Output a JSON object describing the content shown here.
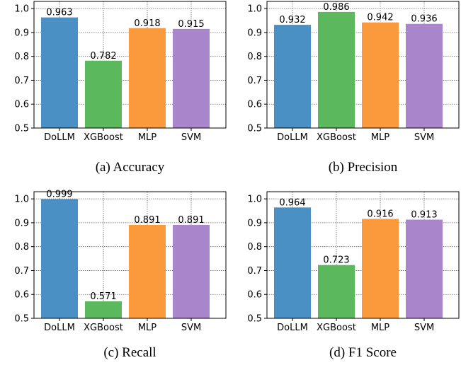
{
  "chart_data": [
    {
      "type": "bar",
      "caption": "(a) Accuracy",
      "categories": [
        "DoLLM",
        "XGBoost",
        "MLP",
        "SVM"
      ],
      "values": [
        0.963,
        0.782,
        0.918,
        0.915
      ],
      "value_labels": [
        "0.963",
        "0.782",
        "0.918",
        "0.915"
      ],
      "ylim": [
        0.5,
        1.03
      ],
      "yticks": [
        "0.5",
        "0.6",
        "0.7",
        "0.8",
        "0.9",
        "1.0"
      ],
      "grid": true
    },
    {
      "type": "bar",
      "caption": "(b) Precision",
      "categories": [
        "DoLLM",
        "XGBoost",
        "MLP",
        "SVM"
      ],
      "values": [
        0.932,
        0.986,
        0.942,
        0.936
      ],
      "value_labels": [
        "0.932",
        "0.986",
        "0.942",
        "0.936"
      ],
      "ylim": [
        0.5,
        1.03
      ],
      "yticks": [
        "0.5",
        "0.6",
        "0.7",
        "0.8",
        "0.9",
        "1.0"
      ],
      "grid": true
    },
    {
      "type": "bar",
      "caption": "(c) Recall",
      "categories": [
        "DoLLM",
        "XGBoost",
        "MLP",
        "SVM"
      ],
      "values": [
        0.999,
        0.571,
        0.891,
        0.891
      ],
      "value_labels": [
        "0.999",
        "0.571",
        "0.891",
        "0.891"
      ],
      "ylim": [
        0.5,
        1.03
      ],
      "yticks": [
        "0.5",
        "0.6",
        "0.7",
        "0.8",
        "0.9",
        "1.0"
      ],
      "grid": true
    },
    {
      "type": "bar",
      "caption": "(d) F1 Score",
      "categories": [
        "DoLLM",
        "XGBoost",
        "MLP",
        "SVM"
      ],
      "values": [
        0.964,
        0.723,
        0.916,
        0.913
      ],
      "value_labels": [
        "0.964",
        "0.723",
        "0.916",
        "0.913"
      ],
      "ylim": [
        0.5,
        1.03
      ],
      "yticks": [
        "0.5",
        "0.6",
        "0.7",
        "0.8",
        "0.9",
        "1.0"
      ],
      "grid": true
    }
  ],
  "colors": {
    "DoLLM": "#4a90c4",
    "XGBoost": "#5cb85c",
    "MLP": "#fb9a3c",
    "SVM": "#a985cb"
  }
}
